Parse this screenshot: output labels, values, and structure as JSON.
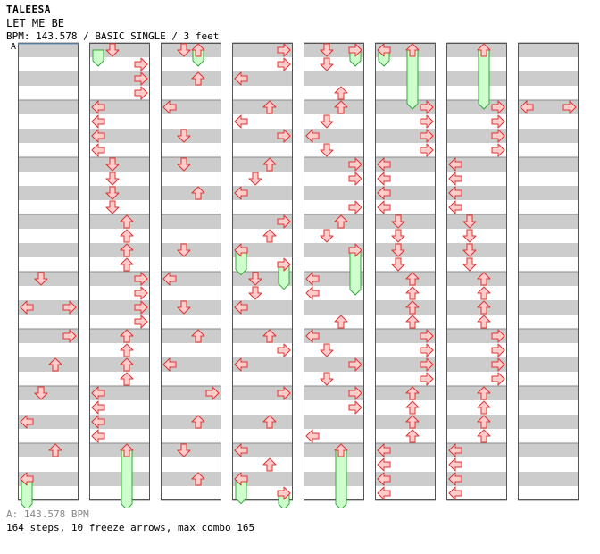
{
  "header": {
    "artist": "TALEESA",
    "title": "LET ME BE",
    "info": "BPM: 143.578 / BASIC SINGLE / 3 feet",
    "bpm_marker": "A"
  },
  "footer": {
    "bpm_line": "A: 143.578 BPM",
    "stats_line": "164 steps, 10 freeze arrows, max combo 165"
  },
  "colors": {
    "arrow_fill": "#ffcccc",
    "arrow_stroke": "#dd3333",
    "freeze_fill": "#ccffcc",
    "freeze_stroke": "#33aa33",
    "stripe": "#cccccc",
    "marker_line": "#6699cc"
  },
  "chart_data": {
    "type": "step-chart",
    "measures_per_column": 8,
    "columns": 8,
    "beats_per_measure": 4,
    "arrow_names": [
      "left",
      "down",
      "up",
      "right"
    ],
    "columns_data": [
      {
        "notes": [
          [
            4,
            1,
            0
          ],
          [
            4.5,
            3,
            1
          ],
          [
            4.5,
            0,
            0
          ],
          [
            5,
            3,
            0
          ],
          [
            5.5,
            2,
            0
          ],
          [
            6,
            1,
            0
          ],
          [
            6.5,
            0,
            0
          ],
          [
            7,
            2,
            0
          ],
          [
            7.5,
            0,
            0
          ]
        ],
        "freezes": [
          [
            7.5,
            0,
            8.2
          ]
        ]
      },
      {
        "notes": [
          [
            0,
            1,
            0
          ],
          [
            0.25,
            3,
            0
          ],
          [
            0.5,
            3,
            0
          ],
          [
            0.75,
            3,
            0
          ],
          [
            1,
            0,
            0
          ],
          [
            1.25,
            0,
            0
          ],
          [
            1.5,
            0,
            0
          ],
          [
            1.75,
            0,
            0
          ],
          [
            2,
            1,
            0
          ],
          [
            2.25,
            1,
            0
          ],
          [
            2.5,
            1,
            0
          ],
          [
            2.75,
            1,
            0
          ],
          [
            3,
            2,
            0
          ],
          [
            3.25,
            2,
            0
          ],
          [
            3.5,
            2,
            0
          ],
          [
            3.75,
            2,
            0
          ],
          [
            4,
            3,
            0
          ],
          [
            4.25,
            3,
            0
          ],
          [
            4.5,
            3,
            0
          ],
          [
            4.75,
            3,
            0
          ],
          [
            5,
            2,
            0
          ],
          [
            5.25,
            2,
            0
          ],
          [
            5.5,
            2,
            0
          ],
          [
            5.75,
            2,
            0
          ],
          [
            6,
            0,
            0
          ],
          [
            6.25,
            0,
            0
          ],
          [
            6.5,
            0,
            0
          ],
          [
            6.75,
            0,
            0
          ],
          [
            7,
            2,
            0
          ]
        ],
        "freezes": [
          [
            0,
            0,
            0.25
          ],
          [
            7,
            2,
            8.2
          ]
        ]
      },
      {
        "notes": [
          [
            0,
            1,
            0
          ],
          [
            0,
            2,
            0
          ],
          [
            0.5,
            2,
            0
          ],
          [
            1,
            0,
            0
          ],
          [
            1.5,
            1,
            0
          ],
          [
            2,
            1,
            0
          ],
          [
            2.5,
            2,
            0
          ],
          [
            3.5,
            1,
            0
          ],
          [
            4,
            0,
            0
          ],
          [
            4.5,
            1,
            0
          ],
          [
            5,
            2,
            0
          ],
          [
            5.5,
            0,
            0
          ],
          [
            6,
            3,
            0
          ],
          [
            6.5,
            2,
            0
          ],
          [
            7,
            1,
            0
          ],
          [
            7.5,
            2,
            0
          ]
        ],
        "freezes": [
          [
            0,
            2,
            0.25
          ]
        ]
      },
      {
        "notes": [
          [
            0,
            3,
            0
          ],
          [
            0.25,
            3,
            0
          ],
          [
            0.5,
            0,
            0
          ],
          [
            1,
            2,
            0
          ],
          [
            1.25,
            0,
            0
          ],
          [
            1.5,
            3,
            0
          ],
          [
            2,
            2,
            0
          ],
          [
            2.25,
            1,
            0
          ],
          [
            2.5,
            0,
            0
          ],
          [
            3,
            3,
            0
          ],
          [
            3.25,
            2,
            0
          ],
          [
            3.5,
            0,
            0
          ],
          [
            3.75,
            3,
            0
          ],
          [
            4,
            1,
            0
          ],
          [
            4.25,
            1,
            0
          ],
          [
            4.5,
            0,
            0
          ],
          [
            5,
            2,
            0
          ],
          [
            5.25,
            3,
            0
          ],
          [
            5.5,
            0,
            0
          ],
          [
            6,
            3,
            0
          ],
          [
            6.5,
            2,
            0
          ],
          [
            7,
            0,
            0
          ],
          [
            7.25,
            2,
            0
          ],
          [
            7.5,
            0,
            0
          ],
          [
            7.75,
            3,
            0
          ]
        ],
        "freezes": [
          [
            3.5,
            0,
            3.9
          ],
          [
            3.75,
            3,
            4.15
          ],
          [
            7.5,
            0,
            7.9
          ],
          [
            7.75,
            3,
            8.2
          ]
        ]
      },
      {
        "notes": [
          [
            0,
            1,
            0
          ],
          [
            0,
            3,
            0
          ],
          [
            0.25,
            1,
            0
          ],
          [
            0.75,
            2,
            0
          ],
          [
            1,
            2,
            0
          ],
          [
            1.25,
            1,
            0
          ],
          [
            1.5,
            0,
            0
          ],
          [
            1.75,
            1,
            0
          ],
          [
            2,
            3,
            0
          ],
          [
            2.25,
            3,
            0
          ],
          [
            2.75,
            3,
            0
          ],
          [
            3,
            2,
            0
          ],
          [
            3.25,
            1,
            0
          ],
          [
            3.5,
            3,
            0
          ],
          [
            4,
            0,
            0
          ],
          [
            4.25,
            0,
            0
          ],
          [
            4.75,
            2,
            0
          ],
          [
            5,
            0,
            0
          ],
          [
            5.25,
            1,
            0
          ],
          [
            5.5,
            3,
            0
          ],
          [
            5.75,
            1,
            0
          ],
          [
            6,
            3,
            0
          ],
          [
            6.25,
            3,
            0
          ],
          [
            6.75,
            0,
            0
          ],
          [
            7,
            2,
            0
          ]
        ],
        "freezes": [
          [
            0,
            3,
            0.25
          ],
          [
            3.5,
            3,
            4.25
          ],
          [
            7,
            2,
            8.2
          ]
        ]
      },
      {
        "notes": [
          [
            0,
            0,
            0
          ],
          [
            0,
            2,
            0
          ],
          [
            1,
            3,
            0
          ],
          [
            1.25,
            3,
            0
          ],
          [
            1.5,
            3,
            0
          ],
          [
            1.75,
            3,
            0
          ],
          [
            2,
            0,
            0
          ],
          [
            2.25,
            0,
            0
          ],
          [
            2.5,
            0,
            0
          ],
          [
            2.75,
            0,
            0
          ],
          [
            3,
            1,
            0
          ],
          [
            3.25,
            1,
            0
          ],
          [
            3.5,
            1,
            0
          ],
          [
            3.75,
            1,
            0
          ],
          [
            4,
            2,
            0
          ],
          [
            4.25,
            2,
            0
          ],
          [
            4.5,
            2,
            0
          ],
          [
            4.75,
            2,
            0
          ],
          [
            5,
            3,
            0
          ],
          [
            5.25,
            3,
            0
          ],
          [
            5.5,
            3,
            0
          ],
          [
            5.75,
            3,
            0
          ],
          [
            6,
            2,
            0
          ],
          [
            6.25,
            2,
            0
          ],
          [
            6.5,
            2,
            0
          ],
          [
            6.75,
            2,
            0
          ],
          [
            7,
            0,
            0
          ],
          [
            7.25,
            0,
            0
          ],
          [
            7.5,
            0,
            0
          ],
          [
            7.75,
            0,
            0
          ]
        ],
        "freezes": [
          [
            0,
            0,
            0.25
          ],
          [
            0,
            2,
            1
          ]
        ]
      },
      {
        "notes": [
          [
            0,
            2,
            0
          ],
          [
            1,
            3,
            0
          ],
          [
            1.25,
            3,
            0
          ],
          [
            1.5,
            3,
            0
          ],
          [
            1.75,
            3,
            0
          ],
          [
            2,
            0,
            0
          ],
          [
            2.25,
            0,
            0
          ],
          [
            2.5,
            0,
            0
          ],
          [
            2.75,
            0,
            0
          ],
          [
            3,
            1,
            0
          ],
          [
            3.25,
            1,
            0
          ],
          [
            3.5,
            1,
            0
          ],
          [
            3.75,
            1,
            0
          ],
          [
            4,
            2,
            0
          ],
          [
            4.25,
            2,
            0
          ],
          [
            4.5,
            2,
            0
          ],
          [
            4.75,
            2,
            0
          ],
          [
            5,
            3,
            0
          ],
          [
            5.25,
            3,
            0
          ],
          [
            5.5,
            3,
            0
          ],
          [
            5.75,
            3,
            0
          ],
          [
            6,
            2,
            0
          ],
          [
            6.25,
            2,
            0
          ],
          [
            6.5,
            2,
            0
          ],
          [
            6.75,
            2,
            0
          ],
          [
            7,
            0,
            0
          ],
          [
            7.25,
            0,
            0
          ],
          [
            7.5,
            0,
            0
          ],
          [
            7.75,
            0,
            0
          ]
        ],
        "freezes": [
          [
            0,
            2,
            1
          ]
        ]
      },
      {
        "notes": [
          [
            1,
            0,
            0
          ],
          [
            1,
            3,
            0
          ]
        ],
        "freezes": []
      }
    ]
  }
}
